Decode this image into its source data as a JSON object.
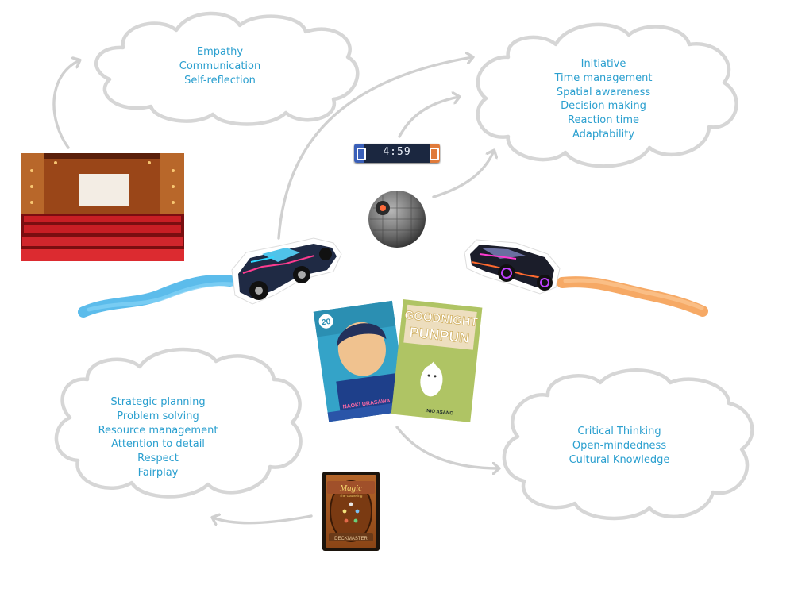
{
  "clouds": {
    "theater": {
      "lines": [
        "Empathy",
        "Communication",
        "Self-reflection"
      ]
    },
    "rocket_league": {
      "lines": [
        "Initiative",
        "Time management",
        "Spatial awareness",
        "Decision making",
        "Reaction time",
        "Adaptability"
      ]
    },
    "magic": {
      "lines": [
        "Strategic planning",
        "Problem solving",
        "Resource management",
        "Attention to detail",
        "Respect",
        "Fairplay"
      ]
    },
    "manga": {
      "lines": [
        "Critical Thinking",
        "Open-mindedness",
        "Cultural Knowledge"
      ]
    }
  },
  "timer": {
    "display": "4:59"
  },
  "magic_card": {
    "logo": "Magic",
    "subtitle": "The Gathering",
    "footer": "DECKMASTER"
  },
  "manga": {
    "book1": {
      "badge": "20",
      "author": "NAOKI URASAWA"
    },
    "book2": {
      "title": "GOODNIGHT PUNPUN",
      "title_line1": "GOODNIGHT",
      "title_line2": "PUNPUN",
      "author": "INIO ASANO"
    }
  },
  "colors": {
    "cloud_text": "#2a9fcf",
    "cloud_outline": "#d6d6d6",
    "arrow": "#d0d0d0",
    "blue_trail": "#3fb0e8",
    "orange_trail": "#f59a4a"
  },
  "icons": [
    "movie-theater-image",
    "blue-car-image",
    "orange-car-image",
    "ball-image",
    "timer-image",
    "manga-covers-image",
    "magic-card-image"
  ]
}
